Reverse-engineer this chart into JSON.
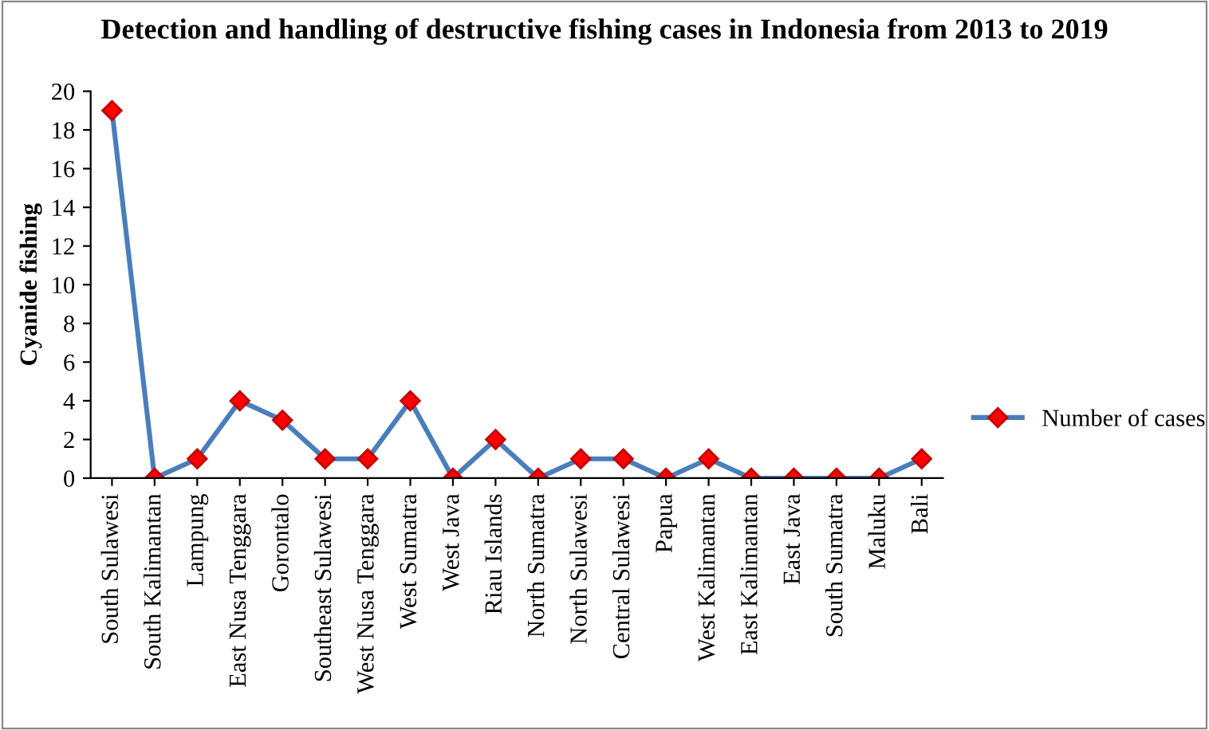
{
  "chart_data": {
    "type": "line",
    "title": "Detection and handling of destructive fishing cases in Indonesia from 2013 to 2019",
    "ylabel": "Cyanide fishing",
    "categories": [
      "South Sulawesi",
      "South Kalimantan",
      "Lampung",
      "East Nusa Tenggara",
      "Gorontalo",
      "Southeast Sulawesi",
      "West Nusa Tenggara",
      "West Sumatra",
      "West Java",
      "Riau Islands",
      "North Sumatra",
      "North Sulawesi",
      "Central Sulawesi",
      "Papua",
      "West Kalimantan",
      "East Kalimantan",
      "East Java",
      "South Sumatra",
      "Maluku",
      "Bali"
    ],
    "series": [
      {
        "name": "Number of cases",
        "color": "#4a7ebb",
        "values": [
          19,
          0,
          1,
          4,
          3,
          1,
          1,
          4,
          0,
          2,
          0,
          1,
          1,
          0,
          1,
          0,
          0,
          0,
          0,
          1
        ]
      }
    ],
    "ylim": [
      0,
      20
    ],
    "yticks": [
      0,
      2,
      4,
      6,
      8,
      10,
      12,
      14,
      16,
      18,
      20
    ],
    "grid": false,
    "legend": "right",
    "marker": "diamond",
    "line_style": "solid"
  }
}
